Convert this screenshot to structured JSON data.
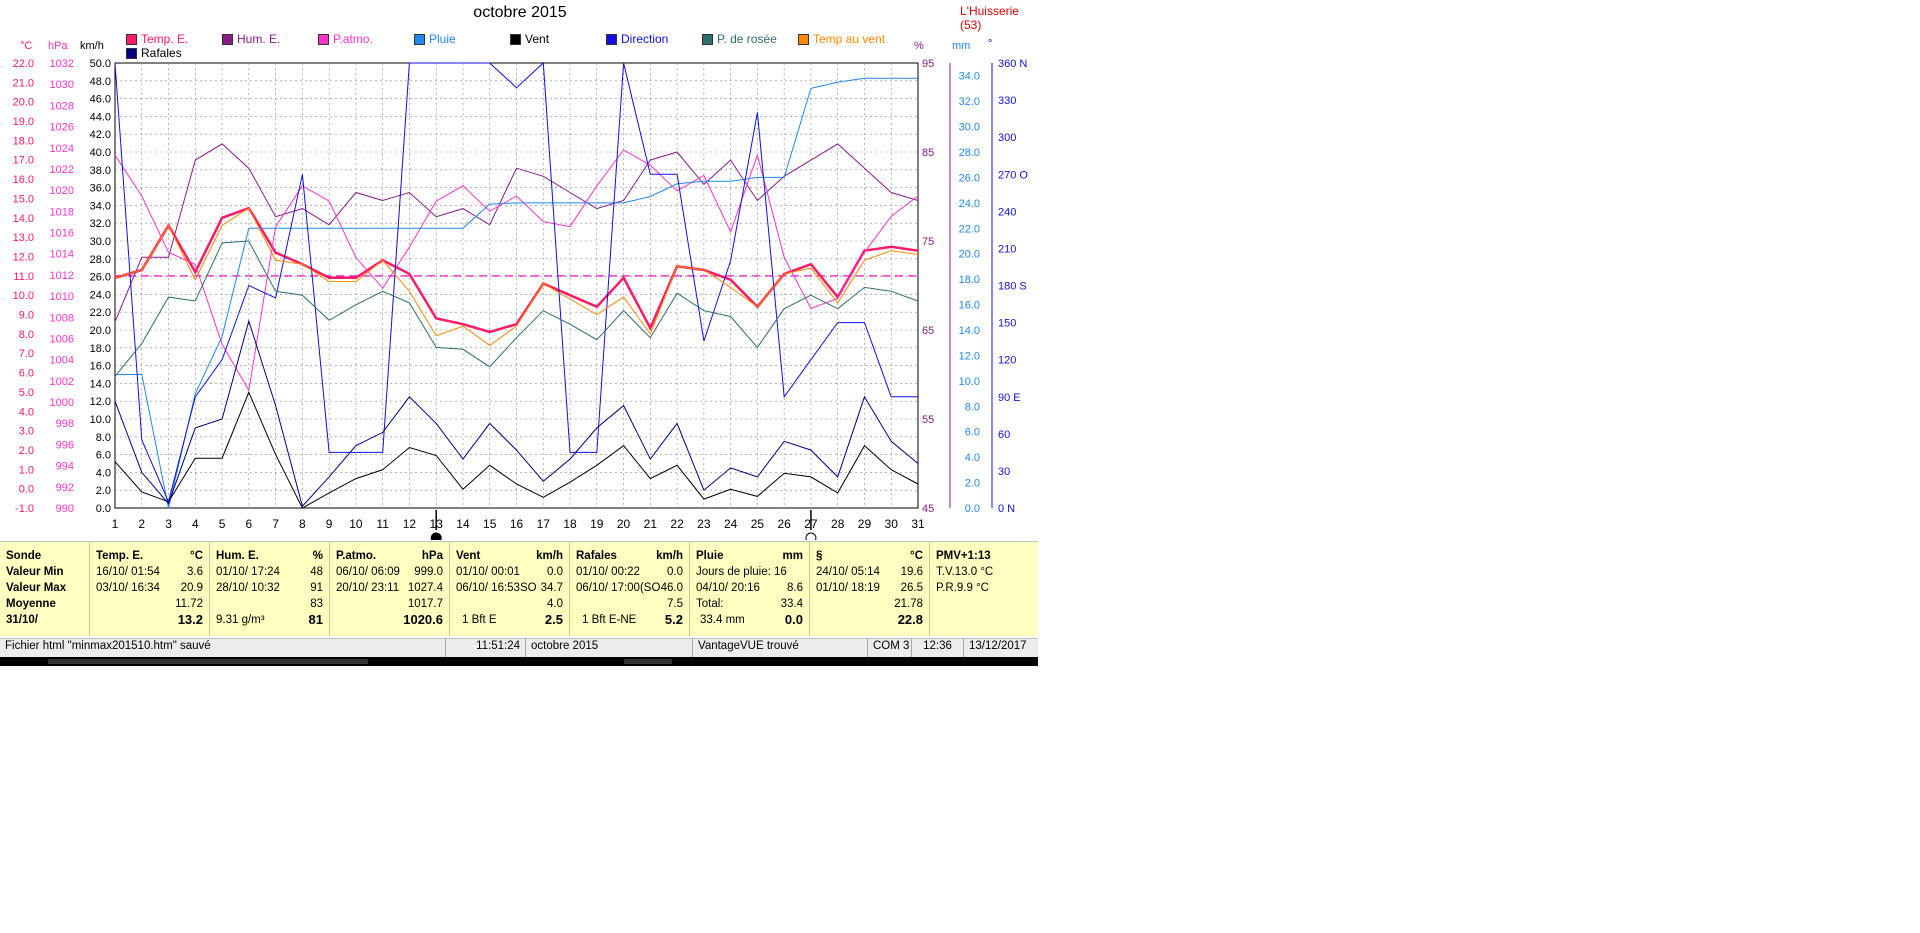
{
  "window": {
    "title": "octobre 2015",
    "station": "L'Huisserie (53)"
  },
  "legend": [
    {
      "label": "Temp. E.",
      "color": "#ff1a66"
    },
    {
      "label": "Hum. E.",
      "color": "#8b1a8b"
    },
    {
      "label": "P.atmo.",
      "color": "#ff33cc"
    },
    {
      "label": "Pluie",
      "color": "#2288ee"
    },
    {
      "label": "Vent",
      "color": "#000000"
    },
    {
      "label": "Direction",
      "color": "#1010e0"
    },
    {
      "label": "P. de rosée",
      "color": "#2e6e6e"
    },
    {
      "label": "Temp au vent",
      "color": "#ff8800"
    },
    {
      "label": "Rafales",
      "color": "#000080"
    }
  ],
  "units": {
    "temp": "°C",
    "press": "hPa",
    "wind": "km/h",
    "hum": "%",
    "rain": "mm",
    "dir": "°"
  },
  "chart_data": {
    "type": "line",
    "title": "octobre 2015",
    "x": [
      1,
      2,
      3,
      4,
      5,
      6,
      7,
      8,
      9,
      10,
      11,
      12,
      13,
      14,
      15,
      16,
      17,
      18,
      19,
      20,
      21,
      22,
      23,
      24,
      25,
      26,
      27,
      28,
      29,
      30,
      31
    ],
    "axes": {
      "temp_ticks": [
        "22.0",
        "21.0",
        "20.0",
        "19.0",
        "18.0",
        "17.0",
        "16.0",
        "15.0",
        "14.0",
        "13.0",
        "12.0",
        "11.0",
        "10.0",
        "9.0",
        "8.0",
        "7.0",
        "6.0",
        "5.0",
        "4.0",
        "3.0",
        "2.0",
        "1.0",
        "0.0",
        "-1.0"
      ],
      "press_ticks": [
        "1032",
        "1030",
        "1028",
        "1026",
        "1024",
        "1022",
        "1020",
        "1018",
        "1016",
        "1014",
        "1012",
        "1010",
        "1008",
        "1006",
        "1004",
        "1002",
        "1000",
        "998",
        "996",
        "994",
        "992",
        "990"
      ],
      "wind_ticks": [
        "50.0",
        "48.0",
        "46.0",
        "44.0",
        "42.0",
        "40.0",
        "38.0",
        "36.0",
        "34.0",
        "32.0",
        "30.0",
        "28.0",
        "26.0",
        "24.0",
        "22.0",
        "20.0",
        "18.0",
        "16.0",
        "14.0",
        "12.0",
        "10.0",
        "8.0",
        "6.0",
        "4.0",
        "2.0",
        "0.0"
      ],
      "hum_ticks": [
        "95",
        "85",
        "75",
        "65",
        "55",
        "45"
      ],
      "rain_ticks": [
        "34.0",
        "32.0",
        "30.0",
        "28.0",
        "26.0",
        "24.0",
        "22.0",
        "20.0",
        "18.0",
        "16.0",
        "14.0",
        "12.0",
        "10.0",
        "8.0",
        "6.0",
        "4.0",
        "2.0",
        "0.0"
      ],
      "dir_ticks": [
        "360 N",
        "330",
        "300",
        "270 O",
        "240",
        "210",
        "180 S",
        "150",
        "120",
        "90 E",
        "60",
        "30",
        "0 N"
      ],
      "x_ticks": [
        "1",
        "2",
        "3",
        "4",
        "5",
        "6",
        "7",
        "8",
        "9",
        "10",
        "11",
        "12",
        "13",
        "14",
        "15",
        "16",
        "17",
        "18",
        "19",
        "20",
        "21",
        "22",
        "23",
        "24",
        "25",
        "26",
        "27",
        "28",
        "29",
        "30",
        "31"
      ]
    },
    "ylim_temp": [
      -1,
      22
    ],
    "ylim_wind": [
      0,
      50
    ],
    "ylim_hum": [
      45,
      100
    ],
    "ylim_rain": [
      0,
      35
    ],
    "ylim_dir": [
      0,
      360
    ],
    "series": [
      {
        "name": "Temp. E.",
        "axis": "temp",
        "color": "#ff1a66",
        "width": 2.5,
        "values": [
          10.9,
          11.3,
          13.6,
          11.2,
          14.0,
          14.5,
          12.2,
          11.6,
          10.9,
          10.9,
          11.8,
          11.1,
          8.8,
          8.5,
          8.1,
          8.5,
          10.6,
          10.0,
          9.4,
          10.9,
          8.3,
          11.5,
          11.3,
          10.8,
          9.4,
          11.1,
          11.6,
          9.9,
          12.3,
          12.5,
          12.3
        ]
      },
      {
        "name": "Hum. E.",
        "axis": "hum",
        "color": "#8b1a8b",
        "width": 1,
        "values": [
          68,
          76,
          76,
          88,
          90,
          87,
          81,
          82,
          80,
          84,
          83,
          84,
          81,
          82,
          80,
          87,
          86,
          84,
          82,
          83,
          88,
          89,
          85,
          88,
          83,
          86,
          88,
          90,
          87,
          84,
          83
        ]
      },
      {
        "name": "P.atmo.",
        "axis": "press",
        "color": "#ff33cc",
        "width": 1,
        "values": [
          1024.5,
          1020.5,
          1015.0,
          1013.8,
          1006.0,
          1001.5,
          1017.5,
          1021.5,
          1020.0,
          1014.5,
          1011.5,
          1015.5,
          1020.0,
          1021.5,
          1019.0,
          1020.5,
          1018.0,
          1017.5,
          1021.5,
          1025.0,
          1023.5,
          1021.0,
          1022.5,
          1017.0,
          1024.5,
          1014.5,
          1009.5,
          1010.5,
          1015.0,
          1018.5,
          1020.5
        ]
      },
      {
        "name": "Pluie",
        "axis": "rain",
        "color": "#2288ee",
        "width": 1,
        "values": [
          10.5,
          10.5,
          0.0,
          9.0,
          13.5,
          22.0,
          22.0,
          22.0,
          22.0,
          22.0,
          22.0,
          22.0,
          22.0,
          22.0,
          23.9,
          24.0,
          24.0,
          24.0,
          24.0,
          24.0,
          24.5,
          25.5,
          25.7,
          25.7,
          26.0,
          26.0,
          33.0,
          33.5,
          33.8,
          33.8,
          33.8
        ]
      },
      {
        "name": "Vent",
        "axis": "wind",
        "color": "#000000",
        "width": 1,
        "values": [
          5.2,
          1.8,
          0.7,
          5.6,
          5.6,
          13.0,
          6.0,
          0.0,
          1.7,
          3.3,
          4.3,
          6.8,
          5.9,
          2.1,
          4.8,
          2.7,
          1.2,
          2.9,
          4.8,
          7.0,
          3.3,
          4.8,
          1.0,
          2.1,
          1.3,
          3.9,
          3.5,
          1.7,
          7.0,
          4.3,
          2.7
        ]
      },
      {
        "name": "Direction",
        "axis": "dir",
        "color": "#1010e0",
        "width": 1,
        "values": [
          360,
          55,
          5,
          90,
          120,
          180,
          170,
          360,
          360,
          360,
          360,
          360,
          360,
          360,
          360,
          340,
          360,
          360,
          360,
          360,
          270,
          270,
          270,
          270,
          270,
          270,
          270,
          270,
          270,
          270,
          270
        ]
      },
      {
        "name": "Direction (segments)",
        "axis": "dir",
        "color": "#1010e0",
        "width": 1,
        "hidden_legend": true,
        "values": [
          360,
          55,
          5,
          90,
          120,
          180,
          170,
          270,
          45,
          45,
          45,
          360,
          360,
          360,
          360,
          340,
          360,
          45,
          45,
          360,
          270,
          270,
          135,
          200,
          320,
          90,
          120,
          150,
          150,
          90,
          90
        ]
      },
      {
        "name": "P. de rosée",
        "axis": "temp",
        "color": "#2e6e6e",
        "width": 1,
        "values": [
          5.8,
          7.5,
          9.9,
          9.7,
          12.7,
          12.8,
          10.2,
          10.0,
          8.7,
          9.5,
          10.2,
          9.6,
          7.3,
          7.2,
          6.3,
          7.8,
          9.2,
          8.5,
          7.7,
          9.2,
          7.8,
          10.1,
          9.2,
          8.9,
          7.3,
          9.3,
          10.0,
          9.3,
          10.4,
          10.2,
          9.7
        ]
      },
      {
        "name": "Temp au vent",
        "axis": "temp",
        "color": "#ff8800",
        "width": 1,
        "values": [
          10.9,
          11.3,
          13.6,
          10.8,
          13.6,
          14.5,
          11.8,
          11.6,
          10.7,
          10.7,
          11.8,
          10.2,
          7.9,
          8.4,
          7.4,
          8.4,
          10.6,
          9.8,
          9.0,
          9.9,
          8.0,
          11.5,
          11.3,
          10.4,
          9.4,
          11.1,
          11.4,
          9.6,
          11.8,
          12.3,
          12.1
        ]
      },
      {
        "name": "Rafales",
        "axis": "wind",
        "color": "#000080",
        "width": 1,
        "values": [
          12.0,
          4.0,
          0.5,
          9.0,
          10.0,
          21.0,
          11.5,
          0.2,
          3.5,
          7.0,
          8.5,
          12.5,
          9.5,
          5.5,
          9.5,
          6.5,
          3.0,
          5.5,
          9.0,
          11.5,
          5.5,
          9.5,
          2.0,
          4.5,
          3.5,
          7.5,
          6.5,
          3.5,
          12.5,
          7.5,
          5.0
        ]
      }
    ],
    "moon": [
      {
        "day": 13,
        "phase": "new"
      },
      {
        "day": 27,
        "phase": "full"
      }
    ],
    "reference_line": {
      "axis": "temp",
      "value": 11.0,
      "color": "#ff33cc"
    }
  },
  "stats": {
    "row_labels": [
      "Sonde",
      "Valeur Min",
      "Valeur Max",
      "Moyenne",
      "31/10/"
    ],
    "columns": [
      {
        "title": "Temp. E.",
        "unit": "°C",
        "rows": [
          [
            "16/10/ 01:54",
            "3.6"
          ],
          [
            "03/10/ 16:34",
            "20.9"
          ],
          [
            "",
            "11.72"
          ],
          [
            "",
            "13.2"
          ]
        ]
      },
      {
        "title": "Hum. E.",
        "unit": "%",
        "rows": [
          [
            "01/10/ 17:24",
            "48"
          ],
          [
            "28/10/ 10:32",
            "91"
          ],
          [
            "",
            "83"
          ],
          [
            "9.31 g/m³",
            "81"
          ]
        ]
      },
      {
        "title": "P.atmo.",
        "unit": "hPa",
        "rows": [
          [
            "06/10/ 06:09",
            "999.0"
          ],
          [
            "20/10/ 23:11",
            "1027.4"
          ],
          [
            "",
            "1017.7"
          ],
          [
            "",
            "1020.6"
          ]
        ]
      },
      {
        "title": "Vent",
        "unit": "km/h",
        "rows": [
          [
            "01/10/ 00:01",
            "0.0"
          ],
          [
            "06/10/ 16:53SO",
            "34.7"
          ],
          [
            "",
            "4.0"
          ],
          [
            "1 Bft E",
            "2.5"
          ]
        ]
      },
      {
        "title": "Rafales",
        "unit": "km/h",
        "rows": [
          [
            "01/10/ 00:22",
            "0.0"
          ],
          [
            "06/10/ 17:00(SO",
            "46.0"
          ],
          [
            "",
            "7.5"
          ],
          [
            "1 Bft E-NE",
            "5.2"
          ]
        ]
      },
      {
        "title": "Pluie",
        "unit": "mm",
        "rows": [
          [
            "Jours de pluie: 16",
            ""
          ],
          [
            "04/10/ 20:16",
            "8.6"
          ],
          [
            "Total:",
            "33.4"
          ],
          [
            "33.4 mm",
            "0.0"
          ]
        ]
      },
      {
        "title": "§",
        "unit": "°C",
        "rows": [
          [
            "24/10/ 05:14",
            "19.6"
          ],
          [
            "01/10/ 18:19",
            "26.5"
          ],
          [
            "",
            "21.78"
          ],
          [
            "",
            "22.8"
          ]
        ]
      },
      {
        "title": "PMV+1:13",
        "unit": "",
        "rows": [
          [
            "T.V.13.0 °C",
            ""
          ],
          [
            "P.R.9.9 °C",
            ""
          ],
          [
            "",
            ""
          ],
          [
            "",
            ""
          ]
        ]
      }
    ]
  },
  "statusbar": {
    "file": "Fichier html  \"minmax201510.htm\"  sauvé",
    "time1": "11:51:24",
    "period": "octobre 2015",
    "device": "VantageVUE trouvé",
    "port": "COM 3",
    "time2": "12:36",
    "date": "13/12/2017"
  }
}
